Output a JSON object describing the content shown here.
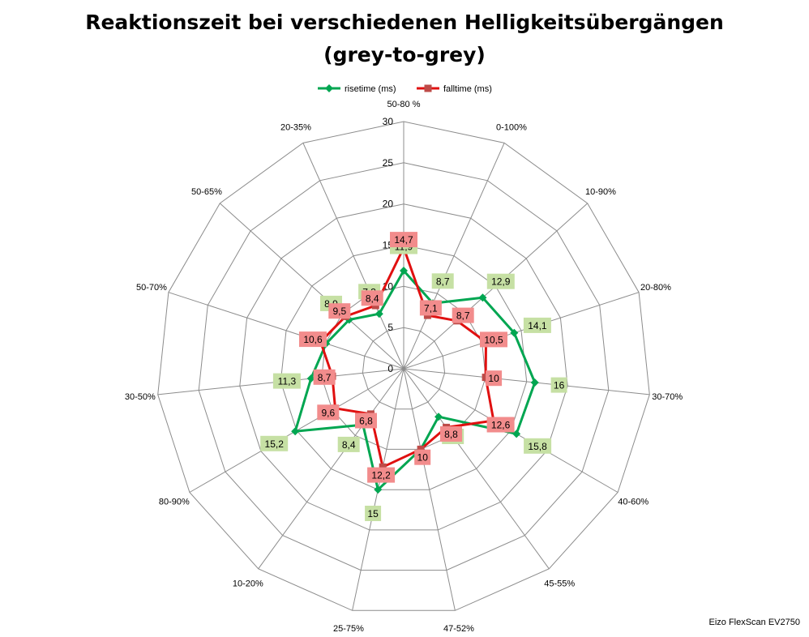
{
  "chart_data": {
    "type": "radar",
    "title_line1": "Reaktionszeit bei verschiedenen Helligkeitsübergängen",
    "title_line2": "(grey-to-grey)",
    "categories": [
      "50-80 %",
      "0-100%",
      "10-90%",
      "20-80%",
      "30-70%",
      "40-60%",
      "45-55%",
      "47-52%",
      "25-75%",
      "10-20%",
      "80-90%",
      "30-50%",
      "50-70%",
      "50-65%",
      "20-35%"
    ],
    "rlim": [
      0,
      30
    ],
    "ticks": [
      "0",
      "5",
      "10",
      "15",
      "20",
      "25",
      "30"
    ],
    "tick_values": [
      0,
      5,
      10,
      15,
      20,
      25,
      30
    ],
    "grid": true,
    "legend_position": "top",
    "series": [
      {
        "name": "risetime (ms)",
        "color": "#00a651",
        "marker": "diamond",
        "values": [
          11.9,
          8.7,
          12.9,
          14.1,
          16,
          15.8,
          7.2,
          10,
          15,
          8.4,
          15.2,
          11.3,
          9.9,
          8.9,
          7.3
        ],
        "labels": [
          "11,9",
          "8,7",
          "12,9",
          "14,1",
          "16",
          "15,8",
          "7,2",
          "",
          "15",
          "8,4",
          "15,2",
          "11,3",
          "",
          "8,9",
          "7,3"
        ],
        "label_color": "#c6e0a4"
      },
      {
        "name": "falltime (ms)",
        "color": "#e01010",
        "marker": "square",
        "values": [
          14.7,
          7.1,
          8.7,
          10.5,
          10,
          12.6,
          8.8,
          10,
          12.2,
          6.8,
          9.6,
          8.7,
          10.6,
          9.5,
          8.4
        ],
        "labels": [
          "14,7",
          "7,1",
          "8,7",
          "10,5",
          "10",
          "12,6",
          "8,8",
          "10",
          "12,2",
          "6,8",
          "9,6",
          "8,7",
          "10,6",
          "9,5",
          "8,4"
        ],
        "label_color": "#f28c8c"
      }
    ]
  },
  "credit": "Eizo FlexScan EV2750"
}
